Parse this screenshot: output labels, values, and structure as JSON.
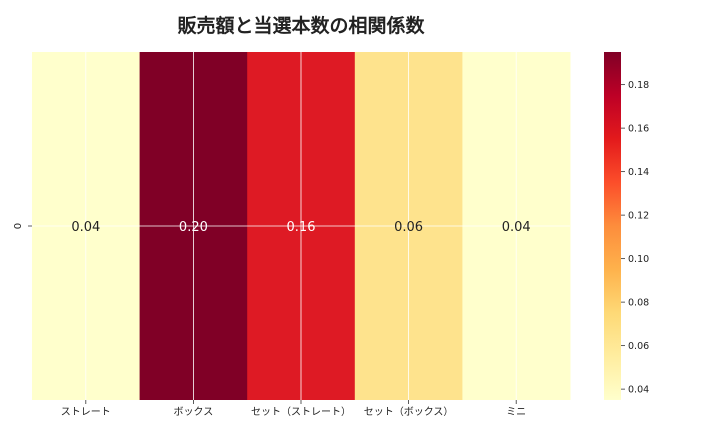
{
  "chart_data": {
    "type": "heatmap",
    "title": "販売額と当選本数の相関係数",
    "row_labels": [
      "0"
    ],
    "categories": [
      "ストレート",
      "ボックス",
      "セット（ストレート）",
      "セット（ボックス）",
      "ミニ"
    ],
    "values": [
      [
        0.04,
        0.2,
        0.16,
        0.06,
        0.04
      ]
    ],
    "cell_labels": [
      "0.04",
      "0.20",
      "0.16",
      "0.06",
      "0.04"
    ],
    "colorbar": {
      "range": [
        0.035,
        0.195
      ],
      "ticks": [
        0.04,
        0.06,
        0.08,
        0.1,
        0.12,
        0.14,
        0.16,
        0.18
      ],
      "tick_labels": [
        "0.04",
        "0.06",
        "0.08",
        "0.10",
        "0.12",
        "0.14",
        "0.16",
        "0.18"
      ],
      "colormap": "YlOrRd"
    },
    "grid": true,
    "colors": {
      "ストレート": "#ffffcc",
      "ボックス": "#800026",
      "セット（ストレート）": "#de1a24",
      "セット（ボックス）": "#fee38d",
      "ミニ": "#ffffcc"
    }
  }
}
